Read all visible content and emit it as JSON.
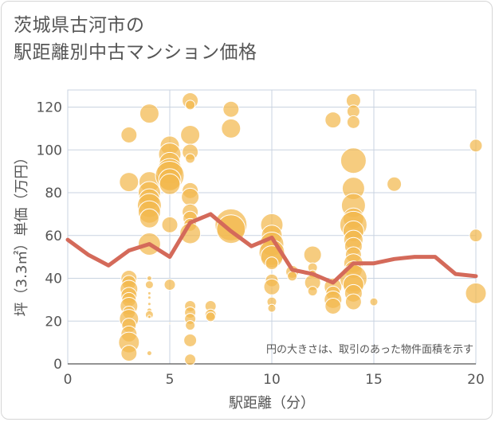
{
  "colors": {
    "bubble": "#f2b94e",
    "bubble_stroke": "#ffffff",
    "line": "#d46a5a",
    "grid": "#c9d3e0",
    "axis": "#555555"
  },
  "chart_data": {
    "type": "scatter",
    "title": [
      "茨城県古河市の",
      "駅距離別中古マンション価格"
    ],
    "xlabel": "駅距離（分）",
    "ylabel": "坪（3.3㎡）単価（万円）",
    "xlim": [
      0,
      20
    ],
    "ylim": [
      0,
      128
    ],
    "xticks": [
      0,
      5,
      10,
      15,
      20
    ],
    "yticks": [
      0,
      20,
      40,
      60,
      80,
      100,
      120
    ],
    "grid": true,
    "note": "円の大きさは、取引のあった物件面積を示す",
    "bubbles": [
      [
        3,
        107,
        10
      ],
      [
        3,
        85,
        12
      ],
      [
        3,
        40,
        10
      ],
      [
        3,
        38,
        9
      ],
      [
        3,
        35,
        11
      ],
      [
        3,
        32,
        10
      ],
      [
        3,
        30,
        9
      ],
      [
        3,
        27,
        11
      ],
      [
        3,
        24,
        8
      ],
      [
        3,
        21,
        12
      ],
      [
        3,
        18,
        9
      ],
      [
        3,
        14,
        10
      ],
      [
        3,
        10,
        13
      ],
      [
        3,
        5,
        10
      ],
      [
        4,
        117,
        12
      ],
      [
        4,
        85,
        13
      ],
      [
        4,
        80,
        14
      ],
      [
        4,
        77,
        13
      ],
      [
        4,
        74,
        15
      ],
      [
        4,
        71,
        14
      ],
      [
        4,
        68,
        12
      ],
      [
        4,
        56,
        14
      ],
      [
        4,
        40,
        3
      ],
      [
        4,
        37,
        5
      ],
      [
        4,
        33,
        2
      ],
      [
        4,
        31,
        2
      ],
      [
        4,
        28,
        2
      ],
      [
        4,
        25,
        3
      ],
      [
        4,
        23,
        5
      ],
      [
        4,
        22,
        2
      ],
      [
        4,
        5,
        3
      ],
      [
        5,
        102,
        12
      ],
      [
        5,
        98,
        14
      ],
      [
        5,
        94,
        13
      ],
      [
        5,
        90,
        16
      ],
      [
        5,
        88,
        18
      ],
      [
        5,
        86,
        14
      ],
      [
        5,
        84,
        13
      ],
      [
        5,
        65,
        10
      ],
      [
        5,
        37,
        7
      ],
      [
        5,
        19,
        1
      ],
      [
        6,
        123,
        10
      ],
      [
        6,
        121,
        6
      ],
      [
        6,
        107,
        12
      ],
      [
        6,
        99,
        10
      ],
      [
        6,
        96,
        6
      ],
      [
        6,
        81,
        10
      ],
      [
        6,
        78,
        11
      ],
      [
        6,
        71,
        10
      ],
      [
        6,
        68,
        9
      ],
      [
        6,
        65,
        8
      ],
      [
        6,
        61,
        13
      ],
      [
        6,
        27,
        7
      ],
      [
        6,
        24,
        7
      ],
      [
        6,
        21,
        7
      ],
      [
        6,
        18,
        6
      ],
      [
        6,
        11,
        8
      ],
      [
        6,
        2,
        7
      ],
      [
        7,
        27,
        7
      ],
      [
        7,
        23,
        7
      ],
      [
        7,
        22,
        6
      ],
      [
        8,
        119,
        10
      ],
      [
        8,
        110,
        12
      ],
      [
        8,
        65,
        20
      ],
      [
        8,
        63,
        18
      ],
      [
        10,
        65,
        14
      ],
      [
        10,
        60,
        13
      ],
      [
        10,
        56,
        15
      ],
      [
        10,
        52,
        16
      ],
      [
        10,
        50,
        14
      ],
      [
        10,
        47,
        8
      ],
      [
        10,
        39,
        8
      ],
      [
        10,
        36,
        10
      ],
      [
        10,
        29,
        6
      ],
      [
        10,
        26,
        5
      ],
      [
        11,
        43,
        8
      ],
      [
        11,
        41,
        6
      ],
      [
        12,
        51,
        11
      ],
      [
        12,
        45,
        6
      ],
      [
        12,
        42,
        5
      ],
      [
        12,
        38,
        10
      ],
      [
        12,
        34,
        6
      ],
      [
        13,
        114,
        10
      ],
      [
        13,
        36,
        11
      ],
      [
        13,
        33,
        9
      ],
      [
        13,
        30,
        11
      ],
      [
        13,
        27,
        10
      ],
      [
        14,
        123,
        9
      ],
      [
        14,
        118,
        8
      ],
      [
        14,
        113,
        8
      ],
      [
        14,
        95,
        16
      ],
      [
        14,
        82,
        14
      ],
      [
        14,
        74,
        15
      ],
      [
        14,
        68,
        13
      ],
      [
        14,
        65,
        17
      ],
      [
        14,
        62,
        13
      ],
      [
        14,
        58,
        12
      ],
      [
        14,
        55,
        11
      ],
      [
        14,
        51,
        10
      ],
      [
        14,
        47,
        12
      ],
      [
        14,
        44,
        11
      ],
      [
        14,
        40,
        17
      ],
      [
        14,
        37,
        13
      ],
      [
        14,
        33,
        11
      ],
      [
        14,
        29,
        10
      ],
      [
        15,
        29,
        5
      ],
      [
        16,
        84,
        9
      ],
      [
        20,
        102,
        8
      ],
      [
        20,
        60,
        8
      ],
      [
        20,
        33,
        13
      ]
    ],
    "series": [
      {
        "type": "line",
        "x": [
          0,
          1,
          2,
          3,
          4,
          5,
          6,
          7,
          8,
          9,
          10,
          11,
          12,
          13,
          14,
          15,
          16,
          17,
          18,
          19,
          20
        ],
        "y": [
          58,
          51,
          46,
          53,
          56,
          50,
          66,
          70,
          62,
          55,
          59,
          44,
          42,
          38,
          47,
          47,
          49,
          50,
          50,
          42,
          41
        ]
      }
    ]
  }
}
